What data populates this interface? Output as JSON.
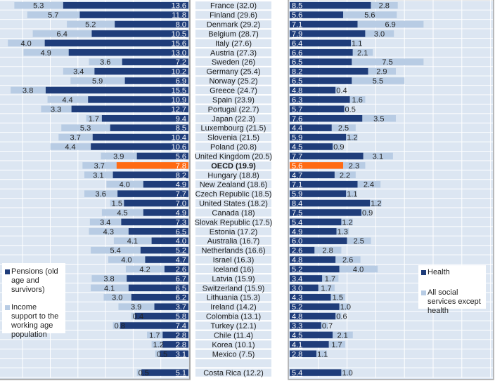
{
  "chart_data": {
    "type": "bar",
    "orientation": "horizontal",
    "layout": "back-to-back stacked bars with central country labels",
    "categories": [
      "France (32.0)",
      "Finland (29.6)",
      "Denmark (29.2)",
      "Belgium (28.7)",
      "Italy (27.6)",
      "Austria (27.3)",
      "Sweden (26)",
      "Germany (25.4)",
      "Norway (25.2)",
      "Greece (24.7)",
      "Spain (23.9)",
      "Portugal (22.7)",
      "Japan (22.3)",
      "Luxembourg (21.5)",
      "Slovenia (21.5)",
      "Poland (20.8)",
      "United Kingdom (20.5)",
      "OECD (19.9)",
      "Hungary (18.8)",
      "New Zealand (18.6)",
      "Czech Republic (18.5)",
      "United States (18.2)",
      "Canada (18)",
      "Slovak Republic (17.5)",
      "Estonia (17.2)",
      "Australia (16.7)",
      "Netherlands (16.6)",
      "Israel (16.3)",
      "Iceland (16)",
      "Latvia (15.9)",
      "Switzerland (15.9)",
      "Lithuania (15.3)",
      "Ireland (14.2)",
      "Colombia (13.1)",
      "Turkey (12.1)",
      "Chile (11.4)",
      "Korea (10.1)",
      "Mexico (7.5)",
      "",
      "Costa Rica (12.2)"
    ],
    "highlight_category": "OECD (19.9)",
    "highlight_color": "#ff6a13",
    "panels": [
      {
        "side": "left",
        "direction": "leftward",
        "xlim": [
          0,
          20
        ],
        "grid_step": 3,
        "series": [
          {
            "name": "Pensions (old age and survivors)",
            "color": "#1f3d7a",
            "values": [
              13.6,
              11.8,
              8.0,
              10.5,
              15.6,
              13.0,
              7.2,
              10.2,
              6.9,
              15.5,
              10.9,
              12.7,
              9.4,
              8.5,
              10.4,
              10.6,
              5.6,
              7.8,
              8.2,
              4.9,
              7.7,
              7.0,
              4.9,
              7.3,
              6.5,
              4.0,
              5.2,
              4.7,
              2.6,
              6.7,
              6.5,
              6.2,
              3.7,
              5.8,
              7.4,
              2.8,
              2.8,
              3.1,
              null,
              5.1
            ]
          },
          {
            "name": "Income support to the working age population",
            "color": "#b8cce4",
            "values": [
              5.3,
              5.7,
              5.2,
              6.4,
              4.0,
              4.9,
              3.6,
              3.4,
              5.9,
              3.8,
              4.4,
              3.3,
              1.7,
              5.3,
              3.7,
              4.4,
              3.9,
              3.7,
              3.1,
              4.0,
              3.6,
              1.5,
              4.5,
              3.4,
              4.3,
              4.1,
              5.4,
              4.0,
              4.2,
              3.8,
              4.1,
              3.0,
              3.9,
              0.4,
              0.8,
              1.7,
              1.2,
              0.5,
              null,
              0.5
            ]
          }
        ]
      },
      {
        "side": "right",
        "direction": "rightward",
        "xlim": [
          0,
          21
        ],
        "grid_step": 3,
        "series": [
          {
            "name": "Health",
            "color": "#1f3d7a",
            "values": [
              8.5,
              5.6,
              7.1,
              7.9,
              6.4,
              6.6,
              6.5,
              8.2,
              6.5,
              4.8,
              6.3,
              5.7,
              7.6,
              4.4,
              5.9,
              4.5,
              7.7,
              5.6,
              4.7,
              7.1,
              5.9,
              8.4,
              7.5,
              5.4,
              4.9,
              6.0,
              2.6,
              4.8,
              5.2,
              3.4,
              3.0,
              4.3,
              5.2,
              4.8,
              3.3,
              4.5,
              4.1,
              2.8,
              null,
              5.4
            ]
          },
          {
            "name": "All social services except health",
            "color": "#b8cce4",
            "values": [
              2.8,
              5.6,
              6.9,
              3.0,
              1.1,
              2.1,
              7.5,
              2.9,
              5.5,
              0.4,
              1.6,
              0.5,
              3.5,
              2.5,
              1.2,
              0.9,
              3.1,
              2.3,
              2.2,
              2.4,
              1.1,
              1.2,
              0.9,
              1.2,
              1.3,
              2.5,
              2.8,
              2.6,
              4.0,
              1.7,
              1.7,
              1.5,
              1.0,
              0.6,
              0.7,
              2.1,
              1.7,
              1.1,
              null,
              1.0
            ]
          }
        ]
      }
    ],
    "legend_left": [
      "Pensions (old age and survivors)",
      "Income support to the working age population"
    ],
    "legend_right": [
      "Health",
      "All social services except health"
    ],
    "legend_placement": {
      "left": "bottom-left",
      "right": "bottom-right"
    },
    "grid": true
  },
  "legend": {
    "left": {
      "items": [
        {
          "label": "Pensions (old age and survivors)",
          "color": "#1f3d7a"
        },
        {
          "label": "Income support to the working age population",
          "color": "#b8cce4"
        }
      ]
    },
    "right": {
      "items": [
        {
          "label": "Health",
          "color": "#1f3d7a"
        },
        {
          "label": "All social services except health",
          "color": "#b8cce4"
        }
      ]
    }
  },
  "colors": {
    "panel_bg": "#dce6f2",
    "grid": "#ffffff",
    "dark": "#1f3d7a",
    "light": "#b8cce4",
    "highlight": "#ff6a13",
    "label_bg": "#dce6f2"
  }
}
